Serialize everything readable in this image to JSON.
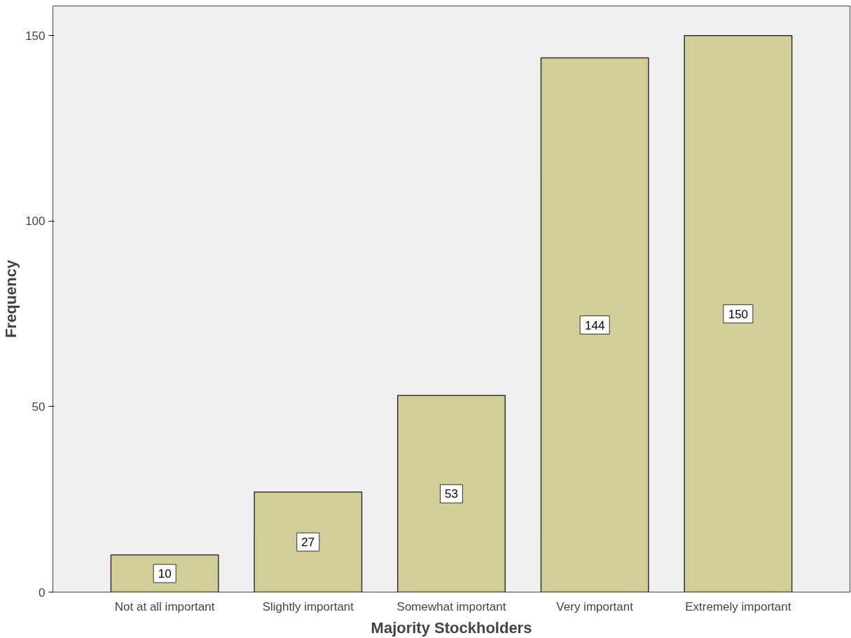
{
  "chart_data": {
    "type": "bar",
    "xlabel": "Majority Stockholders",
    "ylabel": "Frequency",
    "categories": [
      "Not at all important",
      "Slightly important",
      "Somewhat important",
      "Very important",
      "Extremely important"
    ],
    "values": [
      10,
      27,
      53,
      144,
      150
    ],
    "color": "#d3ce97",
    "ylim": [
      0,
      158
    ],
    "yticks": [
      0,
      50,
      100,
      150
    ],
    "grid": false,
    "data_labels": true
  }
}
